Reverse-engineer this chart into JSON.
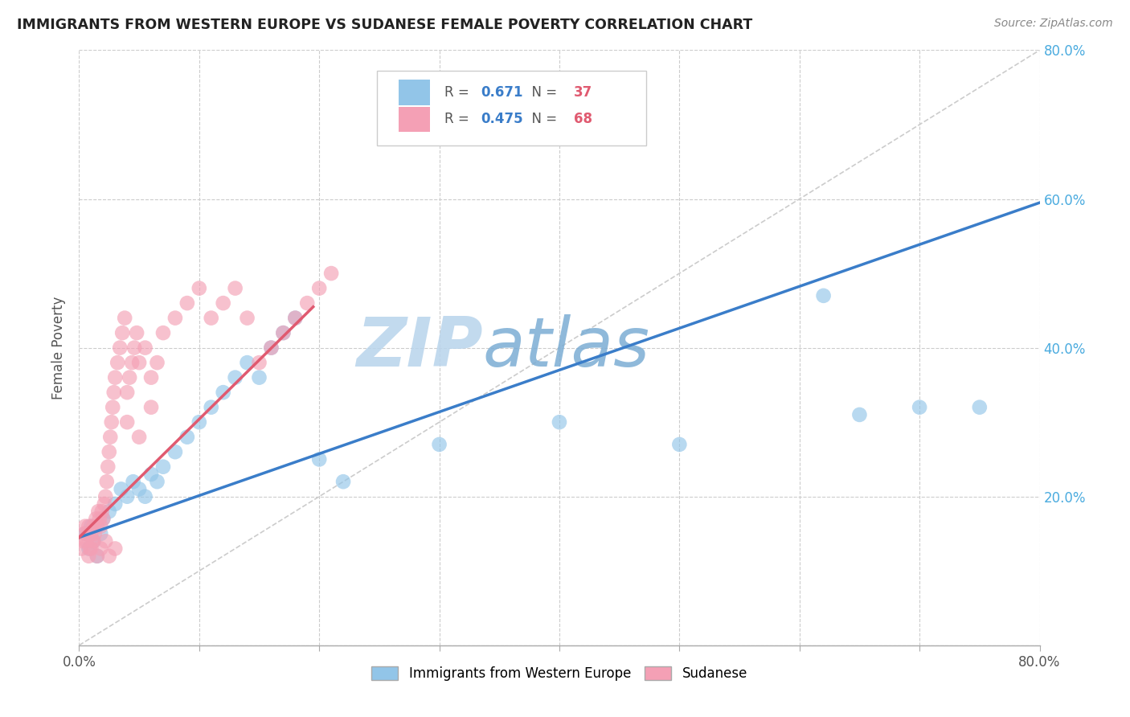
{
  "title": "IMMIGRANTS FROM WESTERN EUROPE VS SUDANESE FEMALE POVERTY CORRELATION CHART",
  "source_text": "Source: ZipAtlas.com",
  "ylabel": "Female Poverty",
  "xlim": [
    0.0,
    0.8
  ],
  "ylim": [
    0.0,
    0.8
  ],
  "xticks": [
    0.0,
    0.1,
    0.2,
    0.3,
    0.4,
    0.5,
    0.6,
    0.7,
    0.8
  ],
  "xticklabels_left": "0.0%",
  "xticklabels_right": "80.0%",
  "ytick_values": [
    0.2,
    0.4,
    0.6,
    0.8
  ],
  "ytick_labels": [
    "20.0%",
    "40.0%",
    "60.0%",
    "80.0%"
  ],
  "blue_R": 0.671,
  "blue_N": 37,
  "pink_R": 0.475,
  "pink_N": 68,
  "blue_color": "#92C5E8",
  "pink_color": "#F4A0B5",
  "blue_line_color": "#3A7DC9",
  "pink_line_color": "#E05A70",
  "legend_label_blue": "Immigrants from Western Europe",
  "legend_label_pink": "Sudanese",
  "watermark": "ZIPatlas",
  "watermark_color_zip": "#B8D4EC",
  "watermark_color_atlas": "#7BADD4",
  "blue_trend_x0": 0.0,
  "blue_trend_y0": 0.145,
  "blue_trend_x1": 0.8,
  "blue_trend_y1": 0.595,
  "pink_trend_x0": 0.0,
  "pink_trend_y0": 0.145,
  "pink_trend_x1": 0.195,
  "pink_trend_y1": 0.455,
  "blue_scatter_x": [
    0.005,
    0.008,
    0.01,
    0.012,
    0.015,
    0.018,
    0.02,
    0.025,
    0.03,
    0.035,
    0.04,
    0.045,
    0.05,
    0.055,
    0.06,
    0.065,
    0.07,
    0.08,
    0.09,
    0.1,
    0.11,
    0.12,
    0.13,
    0.14,
    0.15,
    0.16,
    0.17,
    0.18,
    0.2,
    0.22,
    0.3,
    0.4,
    0.5,
    0.62,
    0.65,
    0.7,
    0.75
  ],
  "blue_scatter_y": [
    0.15,
    0.13,
    0.16,
    0.14,
    0.12,
    0.15,
    0.17,
    0.18,
    0.19,
    0.21,
    0.2,
    0.22,
    0.21,
    0.2,
    0.23,
    0.22,
    0.24,
    0.26,
    0.28,
    0.3,
    0.32,
    0.34,
    0.36,
    0.38,
    0.36,
    0.4,
    0.42,
    0.44,
    0.25,
    0.22,
    0.27,
    0.3,
    0.27,
    0.47,
    0.31,
    0.32,
    0.32
  ],
  "pink_scatter_x": [
    0.002,
    0.003,
    0.004,
    0.005,
    0.006,
    0.007,
    0.008,
    0.009,
    0.01,
    0.011,
    0.012,
    0.013,
    0.014,
    0.015,
    0.016,
    0.017,
    0.018,
    0.019,
    0.02,
    0.021,
    0.022,
    0.023,
    0.024,
    0.025,
    0.026,
    0.027,
    0.028,
    0.029,
    0.03,
    0.032,
    0.034,
    0.036,
    0.038,
    0.04,
    0.042,
    0.044,
    0.046,
    0.048,
    0.05,
    0.055,
    0.06,
    0.065,
    0.07,
    0.08,
    0.09,
    0.1,
    0.11,
    0.12,
    0.13,
    0.14,
    0.15,
    0.16,
    0.17,
    0.18,
    0.19,
    0.2,
    0.21,
    0.04,
    0.05,
    0.06,
    0.008,
    0.01,
    0.012,
    0.015,
    0.018,
    0.022,
    0.025,
    0.03
  ],
  "pink_scatter_y": [
    0.13,
    0.14,
    0.15,
    0.16,
    0.14,
    0.15,
    0.16,
    0.13,
    0.15,
    0.14,
    0.16,
    0.15,
    0.17,
    0.16,
    0.18,
    0.17,
    0.16,
    0.18,
    0.17,
    0.19,
    0.2,
    0.22,
    0.24,
    0.26,
    0.28,
    0.3,
    0.32,
    0.34,
    0.36,
    0.38,
    0.4,
    0.42,
    0.44,
    0.34,
    0.36,
    0.38,
    0.4,
    0.42,
    0.38,
    0.4,
    0.36,
    0.38,
    0.42,
    0.44,
    0.46,
    0.48,
    0.44,
    0.46,
    0.48,
    0.44,
    0.38,
    0.4,
    0.42,
    0.44,
    0.46,
    0.48,
    0.5,
    0.3,
    0.28,
    0.32,
    0.12,
    0.13,
    0.14,
    0.12,
    0.13,
    0.14,
    0.12,
    0.13
  ]
}
